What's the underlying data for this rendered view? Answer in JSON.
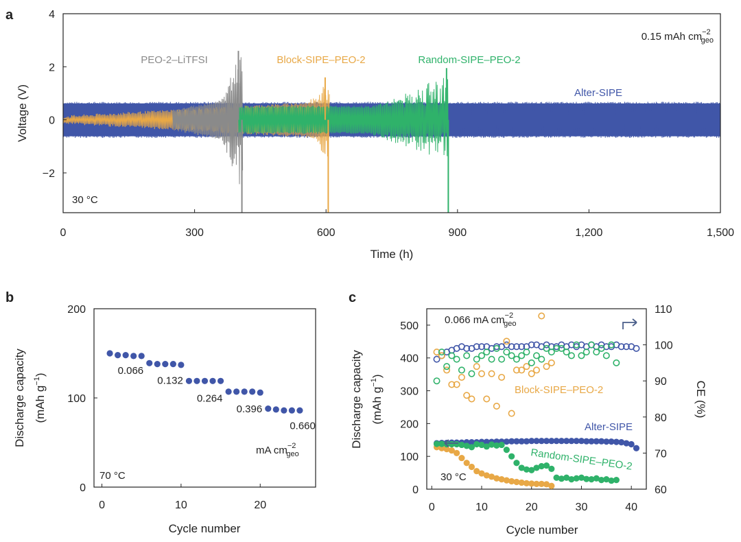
{
  "chart_data": [
    {
      "panel": "a",
      "type": "line",
      "xlabel": "Time (h)",
      "ylabel": "Voltage (V)",
      "xlim": [
        0,
        1500
      ],
      "ylim": [
        -3.5,
        4
      ],
      "xticks": [
        "0",
        "300",
        "600",
        "900",
        "1,200",
        "1,500"
      ],
      "xtick_values": [
        0,
        300,
        600,
        900,
        1200,
        1500
      ],
      "yticks": [
        "−2",
        "0",
        "2",
        "4"
      ],
      "ytick_values": [
        -2,
        0,
        2,
        4
      ],
      "current_density": "0.15 mAh cm",
      "current_density_sup": "−2",
      "current_density_sub": "geo",
      "temperature": "30 °C",
      "colors": {
        "alter": "#4056a8",
        "peo": "#8a8a8a",
        "block": "#e8a846",
        "random": "#2fb26a"
      },
      "series": [
        {
          "name": "Alter-SIPE",
          "color": "#4056a8",
          "end_time": 1500,
          "amplitude": 0.65
        },
        {
          "name": "PEO-2–LiTFSI",
          "color": "#8a8a8a",
          "start_time": 250,
          "end_time": 410,
          "peak_voltage": 2.6,
          "min_voltage": -3.5
        },
        {
          "name": "Block-SIPE–PEO-2",
          "color": "#e8a846",
          "end_time": 608,
          "peak_voltage": 1.6,
          "min_voltage": -3.5
        },
        {
          "name": "Random-SIPE–PEO-2",
          "color": "#2fb26a",
          "start_time": 400,
          "end_time": 880,
          "peak_voltage": 1.95,
          "min_voltage": -3.5
        }
      ]
    },
    {
      "panel": "b",
      "type": "scatter",
      "xlabel": "Cycle number",
      "ylabel": "Discharge capacity",
      "ylabel2": "(mAh g",
      "ylabel2_sup": "−1",
      "ylabel2_end": ")",
      "xlim": [
        -1,
        27
      ],
      "ylim": [
        0,
        200
      ],
      "xticks": [
        "0",
        "10",
        "20"
      ],
      "xtick_values": [
        0,
        10,
        20
      ],
      "yticks": [
        "0",
        "100",
        "200"
      ],
      "ytick_values": [
        0,
        100,
        200
      ],
      "temperature": "70 °C",
      "unit_text": "mA cm",
      "unit_sup": "−2",
      "unit_sub": "geo",
      "rate_labels": [
        "0.066",
        "0.132",
        "0.264",
        "0.396",
        "0.660"
      ],
      "color": "#4056a8",
      "x": [
        1,
        2,
        3,
        4,
        5,
        6,
        7,
        8,
        9,
        10,
        11,
        12,
        13,
        14,
        15,
        16,
        17,
        18,
        19,
        20,
        21,
        22,
        23,
        24,
        25
      ],
      "y": [
        150,
        148,
        148,
        147,
        147,
        139,
        138,
        138,
        138,
        137,
        119,
        119,
        119,
        119,
        119,
        107,
        107,
        107,
        107,
        106,
        88,
        87,
        86,
        86,
        86
      ]
    },
    {
      "panel": "c",
      "type": "scatter",
      "xlabel": "Cycle number",
      "ylabel": "Discharge capacity",
      "ylabel2": "(mAh g",
      "ylabel2_sup": "−1",
      "ylabel2_end": ")",
      "ylabel_right": "CE (%)",
      "xlim": [
        -1,
        43
      ],
      "ylim": [
        0,
        550
      ],
      "ylim_right": [
        60,
        110
      ],
      "xticks": [
        "0",
        "10",
        "20",
        "30",
        "40"
      ],
      "xtick_values": [
        0,
        10,
        20,
        30,
        40
      ],
      "yticks": [
        "0",
        "100",
        "200",
        "300",
        "400",
        "500"
      ],
      "ytick_values": [
        0,
        100,
        200,
        300,
        400,
        500
      ],
      "yticks_right": [
        "60",
        "70",
        "80",
        "90",
        "100",
        "110"
      ],
      "ytick_values_right": [
        60,
        70,
        80,
        90,
        100,
        110
      ],
      "current_density": "0.066 mA cm",
      "current_density_sup": "−2",
      "current_density_sub": "geo",
      "temperature": "30 °C",
      "series": [
        {
          "name": "Alter-SIPE",
          "color": "#4056a8",
          "axis": "capacity",
          "x": [
            1,
            2,
            3,
            4,
            5,
            6,
            7,
            8,
            9,
            10,
            11,
            12,
            13,
            14,
            15,
            16,
            17,
            18,
            19,
            20,
            21,
            22,
            23,
            24,
            25,
            26,
            27,
            28,
            29,
            30,
            31,
            32,
            33,
            34,
            35,
            36,
            37,
            38,
            39,
            40,
            41
          ],
          "y": [
            140,
            141,
            141,
            142,
            142,
            142,
            143,
            143,
            143,
            144,
            144,
            144,
            145,
            145,
            145,
            146,
            146,
            146,
            146,
            147,
            147,
            147,
            147,
            147,
            147,
            147,
            147,
            147,
            147,
            147,
            146,
            146,
            146,
            146,
            145,
            145,
            144,
            143,
            140,
            137,
            125
          ]
        },
        {
          "name": "Block-SIPE–PEO-2",
          "color": "#e8a846",
          "axis": "capacity",
          "x": [
            1,
            2,
            3,
            4,
            5,
            6,
            7,
            8,
            9,
            10,
            11,
            12,
            13,
            14,
            15,
            16,
            17,
            18,
            19,
            20,
            21,
            22,
            23,
            24
          ],
          "y": [
            128,
            125,
            122,
            118,
            110,
            95,
            80,
            68,
            55,
            48,
            42,
            38,
            33,
            30,
            27,
            24,
            22,
            20,
            18,
            17,
            16,
            16,
            15,
            10
          ]
        },
        {
          "name": "Random-SIPE–PEO-2",
          "color": "#2fb26a",
          "axis": "capacity",
          "x": [
            1,
            2,
            3,
            4,
            5,
            6,
            7,
            8,
            9,
            10,
            11,
            12,
            13,
            14,
            15,
            16,
            17,
            18,
            19,
            20,
            21,
            22,
            23,
            24,
            25,
            26,
            27,
            28,
            29,
            30,
            31,
            32,
            33,
            34,
            35,
            36,
            37
          ],
          "y": [
            138,
            138,
            137,
            137,
            137,
            135,
            132,
            128,
            137,
            135,
            130,
            136,
            133,
            135,
            120,
            100,
            80,
            65,
            60,
            58,
            65,
            70,
            72,
            62,
            35,
            32,
            35,
            30,
            33,
            35,
            31,
            30,
            33,
            28,
            30,
            26,
            28
          ]
        },
        {
          "name": "Alter-SIPE CE",
          "color": "#4056a8",
          "axis": "ce",
          "x": [
            1,
            2,
            3,
            4,
            5,
            6,
            7,
            8,
            9,
            10,
            11,
            12,
            13,
            14,
            15,
            16,
            17,
            18,
            19,
            20,
            21,
            22,
            23,
            24,
            25,
            26,
            27,
            28,
            29,
            30,
            31,
            32,
            33,
            34,
            35,
            36,
            37,
            38,
            39,
            40,
            41
          ],
          "y": [
            96,
            97,
            98,
            98.5,
            99,
            99.5,
            99,
            99,
            99.5,
            99.5,
            99.5,
            99,
            99.5,
            99.5,
            100,
            99.5,
            99.5,
            99.5,
            99.5,
            100,
            100,
            99.5,
            100,
            99.5,
            99.5,
            100,
            99.5,
            100,
            99.5,
            100,
            99.5,
            100,
            99.5,
            100,
            99.5,
            99.5,
            100,
            99.5,
            99.5,
            99.5,
            99
          ]
        },
        {
          "name": "Block-SIPE–PEO-2 CE",
          "color": "#e8a846",
          "axis": "ce",
          "x": [
            1,
            2,
            3,
            4,
            5,
            6,
            7,
            8,
            9,
            10,
            11,
            12,
            13,
            14,
            15,
            16,
            17,
            18,
            19,
            20,
            21,
            22,
            23,
            24
          ],
          "y": [
            98,
            97,
            93,
            89,
            89,
            91,
            86,
            85,
            94,
            92,
            85,
            92,
            83,
            91,
            101,
            81,
            93,
            93,
            94,
            92,
            93,
            108,
            94,
            95
          ]
        },
        {
          "name": "Random-SIPE–PEO-2 CE",
          "color": "#2fb26a",
          "axis": "ce",
          "x": [
            1,
            2,
            3,
            4,
            5,
            6,
            7,
            8,
            9,
            10,
            11,
            12,
            13,
            14,
            15,
            16,
            17,
            18,
            19,
            20,
            21,
            22,
            23,
            24,
            25,
            26,
            27,
            28,
            29,
            30,
            31,
            32,
            33,
            34,
            35,
            36,
            37
          ],
          "y": [
            90,
            98,
            94,
            97,
            96,
            93,
            97,
            92,
            96,
            97,
            98,
            96,
            99,
            96,
            98,
            97,
            96,
            97,
            98,
            95,
            97,
            96,
            99,
            98,
            99,
            99,
            98,
            97,
            100,
            97,
            98,
            100,
            98,
            99,
            97,
            100,
            95
          ]
        }
      ]
    }
  ],
  "labels": {
    "panel_a": "a",
    "panel_b": "b",
    "panel_c": "c",
    "peo": "PEO-2–LiTFSI",
    "block": "Block-SIPE–PEO-2",
    "random": "Random-SIPE–PEO-2",
    "alter": "Alter-SIPE"
  }
}
